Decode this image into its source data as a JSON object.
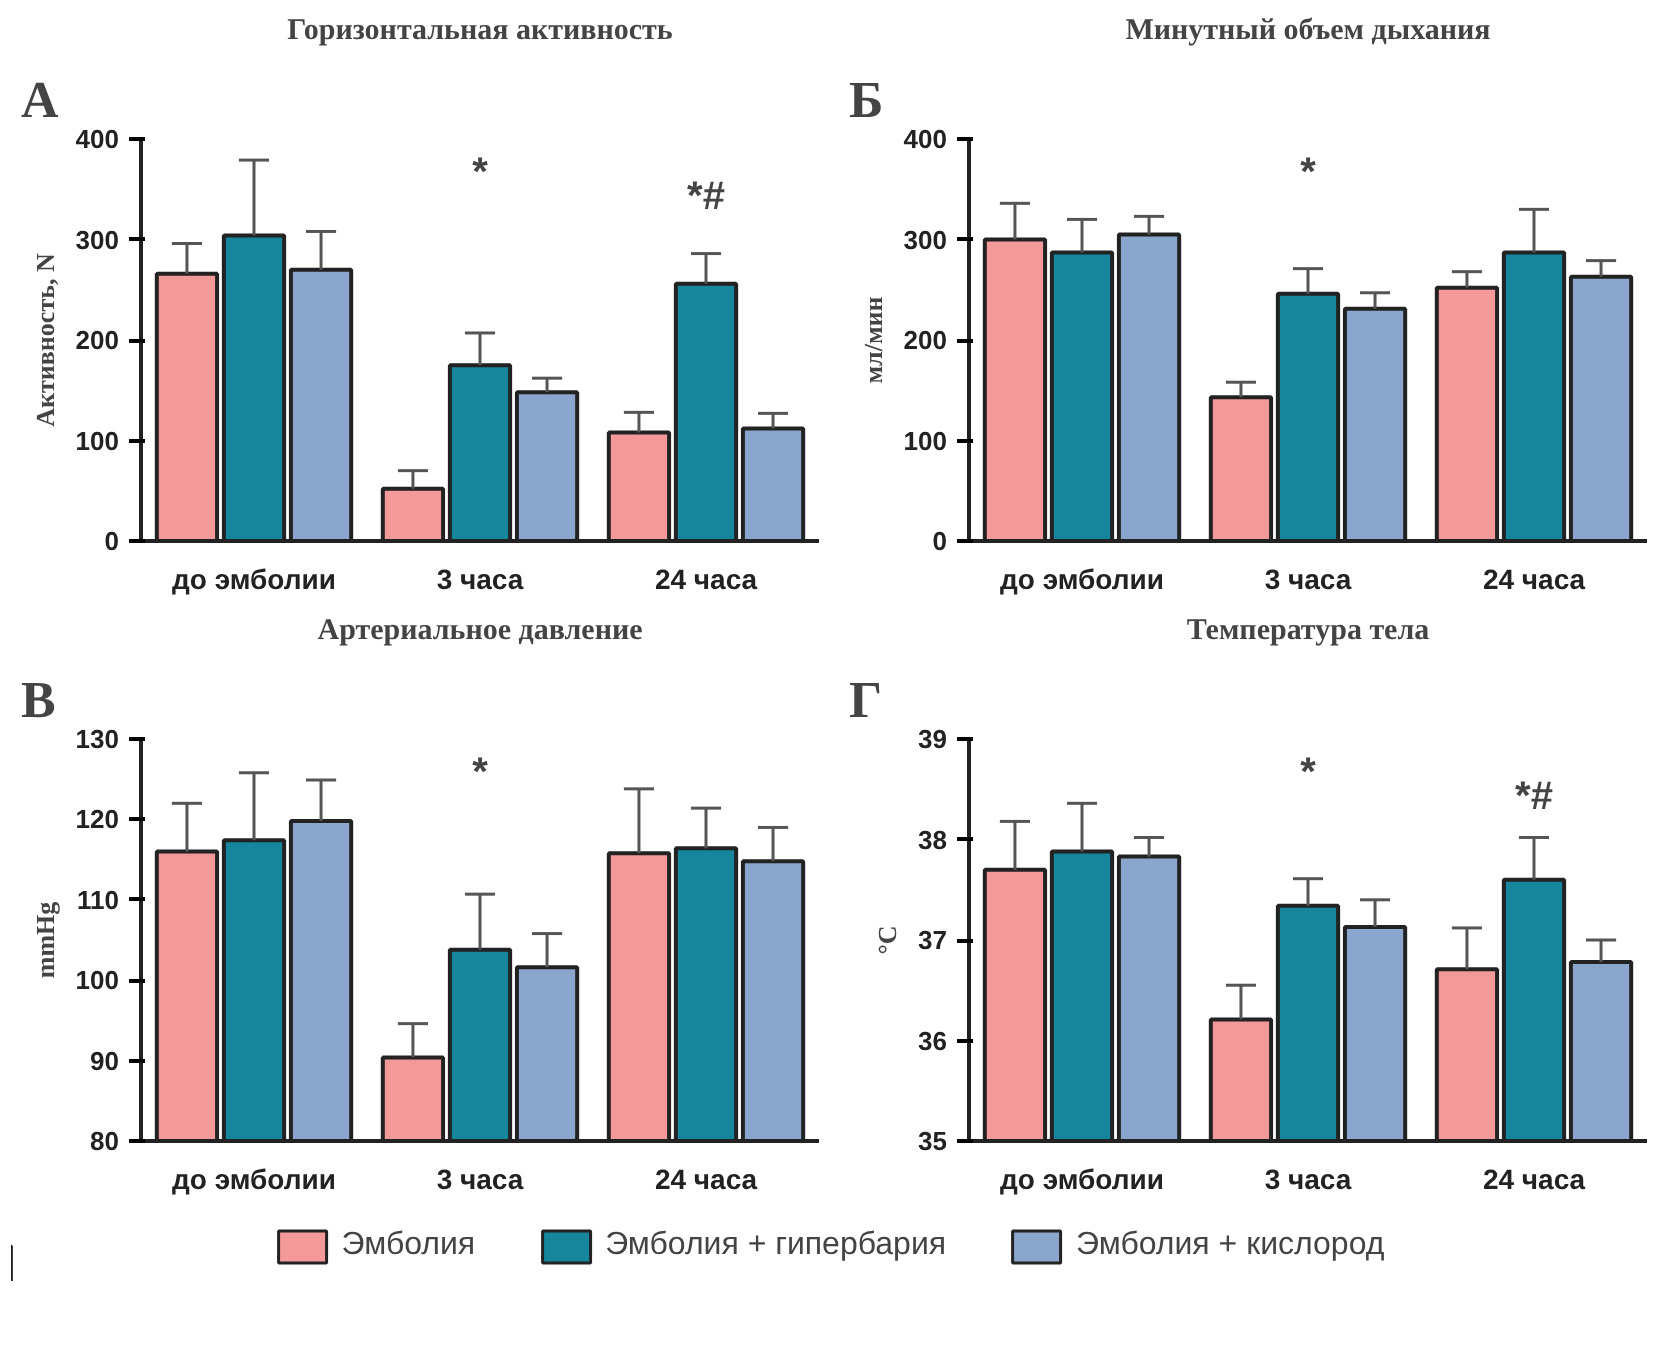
{
  "chart_data": [
    {
      "type": "bar",
      "title": "Горизонтальная активность",
      "ylabel": "Активность, N",
      "categories": [
        "до эмболии",
        "3 часа",
        "24 часа"
      ],
      "ylim": [
        0,
        400
      ],
      "yticks": [
        0,
        100,
        200,
        300,
        400
      ],
      "grid": false,
      "legend": false,
      "annotations": [
        "А",
        "*",
        "*#"
      ],
      "series": [
        {
          "color": "#f4999a",
          "values": [
            266,
            52,
            108
          ],
          "errors": [
            [
              266,
              296
            ],
            [
              52,
              70
            ],
            [
              108,
              128
            ]
          ]
        },
        {
          "color": "#15869c",
          "values": [
            304,
            175,
            256
          ],
          "errors": [
            [
              304,
              379
            ],
            [
              175,
              207
            ],
            [
              256,
              286
            ]
          ]
        },
        {
          "color": "#8aa6cc",
          "values": [
            270,
            148,
            112
          ],
          "errors": [
            [
              270,
              308
            ],
            [
              148,
              162
            ],
            [
              112,
              127
            ]
          ]
        }
      ]
    },
    {
      "type": "bar",
      "title": "Минутный объем дыхания",
      "ylabel": "мл/мин",
      "categories": [
        "до эмболии",
        "3 часа",
        "24 часа"
      ],
      "ylim": [
        0,
        400
      ],
      "yticks": [
        0,
        100,
        200,
        300,
        400
      ],
      "grid": false,
      "legend": false,
      "annotations": [
        "Б",
        "*"
      ],
      "series": [
        {
          "color": "#f4999a",
          "values": [
            300,
            143,
            252
          ],
          "errors": [
            [
              300,
              336
            ],
            [
              143,
              158
            ],
            [
              252,
              268
            ]
          ]
        },
        {
          "color": "#15869c",
          "values": [
            287,
            246,
            287
          ],
          "errors": [
            [
              287,
              320
            ],
            [
              246,
              271
            ],
            [
              287,
              330
            ]
          ]
        },
        {
          "color": "#8aa6cc",
          "values": [
            305,
            231,
            263
          ],
          "errors": [
            [
              305,
              323
            ],
            [
              231,
              247
            ],
            [
              263,
              279
            ]
          ]
        }
      ]
    },
    {
      "type": "bar",
      "title": "Артериальное давление",
      "ylabel": "mmHg",
      "categories": [
        "до эмболии",
        "3 часа",
        "24 часа"
      ],
      "ylim": [
        80,
        130
      ],
      "yticks": [
        80,
        90,
        100,
        110,
        120,
        130
      ],
      "grid": false,
      "legend": false,
      "annotations": [
        "В",
        "*"
      ],
      "series": [
        {
          "color": "#f4999a",
          "values": [
            116,
            90.4,
            115.8
          ],
          "errors": [
            [
              116,
              122
            ],
            [
              90.4,
              94.6
            ],
            [
              115.8,
              123.8
            ]
          ]
        },
        {
          "color": "#15869c",
          "values": [
            117.4,
            103.8,
            116.4
          ],
          "errors": [
            [
              117.4,
              125.8
            ],
            [
              103.8,
              110.7
            ],
            [
              116.4,
              121.4
            ]
          ]
        },
        {
          "color": "#8aa6cc",
          "values": [
            119.8,
            101.6,
            114.8
          ],
          "errors": [
            [
              119.8,
              124.9
            ],
            [
              101.6,
              105.8
            ],
            [
              114.8,
              119
            ]
          ]
        }
      ]
    },
    {
      "type": "bar",
      "title": "Температура тела",
      "ylabel": "°C",
      "categories": [
        "до эмболии",
        "3 часа",
        "24 часа"
      ],
      "ylim": [
        35,
        39
      ],
      "yticks": [
        35,
        36,
        37,
        38,
        39
      ],
      "grid": false,
      "legend": "bottom",
      "annotations": [
        "Г",
        "*",
        "*#"
      ],
      "series": [
        {
          "name": "Эмболия",
          "color": "#f4999a",
          "values": [
            37.7,
            36.21,
            36.71
          ],
          "errors": [
            [
              37.7,
              38.18
            ],
            [
              36.21,
              36.55
            ],
            [
              36.71,
              37.12
            ]
          ]
        },
        {
          "name": "Эмболия + гипербария",
          "color": "#15869c",
          "values": [
            37.88,
            37.34,
            37.6
          ],
          "errors": [
            [
              37.88,
              38.36
            ],
            [
              37.34,
              37.61
            ],
            [
              37.6,
              38.02
            ]
          ]
        },
        {
          "name": "Эмболия + кислород",
          "color": "#8aa6cc",
          "values": [
            37.83,
            37.13,
            36.78
          ],
          "errors": [
            [
              37.83,
              38.02
            ],
            [
              37.13,
              37.4
            ],
            [
              36.78,
              37.0
            ]
          ]
        }
      ]
    }
  ]
}
